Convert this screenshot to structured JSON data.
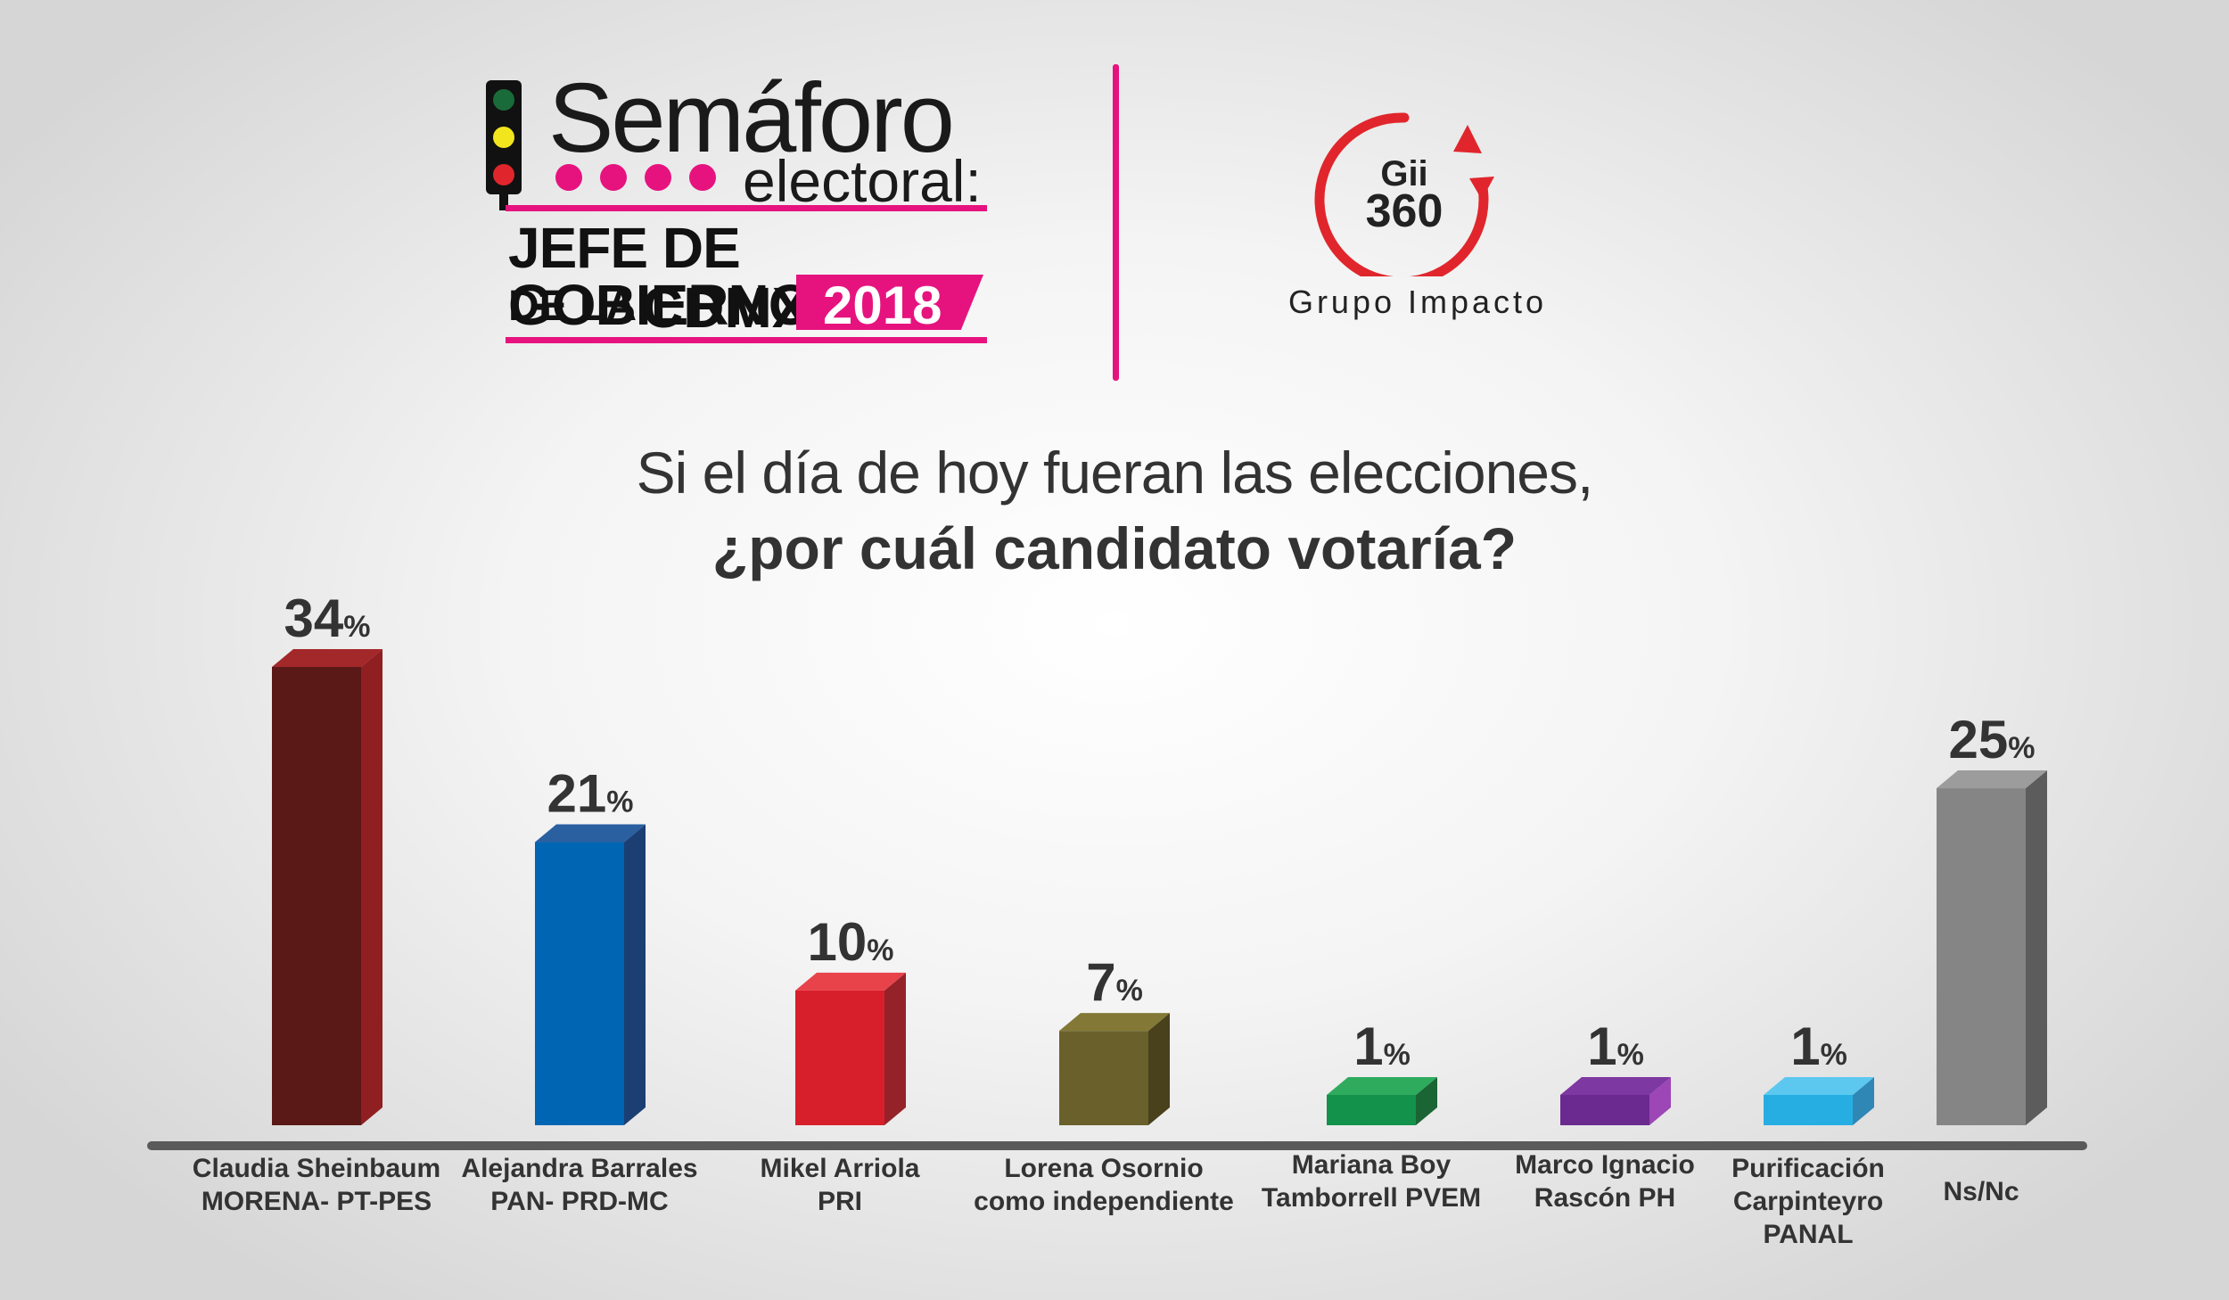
{
  "header": {
    "logo_title": "Semáforo",
    "logo_subtitle": "electoral:",
    "logo_line1": "JEFE DE GOBIERNO",
    "logo_line2_prefix": "DE LA",
    "logo_line2_main": "CDMX",
    "logo_year": "2018",
    "partner_logo_top": "Gii",
    "partner_logo_bottom": "360",
    "partner_name": "Grupo Impacto"
  },
  "colors": {
    "accent": "#e6137f",
    "light_green": "#1a6b3a",
    "light_yellow": "#f2e51d",
    "light_red": "#e0262c",
    "partner_ring": "#e0262c"
  },
  "question": {
    "line1": "Si el día de hoy fueran las elecciones,",
    "line2": "¿por cuál candidato votaría?"
  },
  "chart_data": {
    "type": "bar",
    "title": "",
    "xlabel": "",
    "ylabel": "",
    "ylim": [
      0,
      34
    ],
    "grid": false,
    "legend": "none",
    "value_suffix": "%",
    "categories": [
      [
        "Claudia Sheinbaum",
        "MORENA- PT-PES"
      ],
      [
        "Alejandra Barrales",
        "PAN- PRD-MC"
      ],
      [
        "Mikel Arriola",
        "PRI"
      ],
      [
        "Lorena Osornio",
        "como independiente"
      ],
      [
        "Mariana Boy",
        "Tamborrell PVEM"
      ],
      [
        "Marco Ignacio",
        "Rascón PH"
      ],
      [
        "Purificación",
        "Carpinteyro",
        "PANAL"
      ],
      [
        "Ns/Nc"
      ]
    ],
    "values": [
      34,
      21,
      10,
      7,
      1,
      1,
      1,
      25
    ],
    "bar_colors": [
      {
        "front": "#5a1816",
        "side": "#8f1f20",
        "top": "#a3282a"
      },
      {
        "front": "#0066b3",
        "side": "#1b3f73",
        "top": "#2a5fa0"
      },
      {
        "front": "#d71f2b",
        "side": "#962229",
        "top": "#e8424b"
      },
      {
        "front": "#6a602b",
        "side": "#48411c",
        "top": "#837835"
      },
      {
        "front": "#13924b",
        "side": "#1b6433",
        "top": "#2fab5e"
      },
      {
        "front": "#6b2a8f",
        "side": "#9c47b5",
        "top": "#7d38a2"
      },
      {
        "front": "#26aee3",
        "side": "#2f87b5",
        "top": "#5dc8ef"
      },
      {
        "front": "#858585",
        "side": "#5c5c5c",
        "top": "#9c9c9c"
      }
    ]
  }
}
